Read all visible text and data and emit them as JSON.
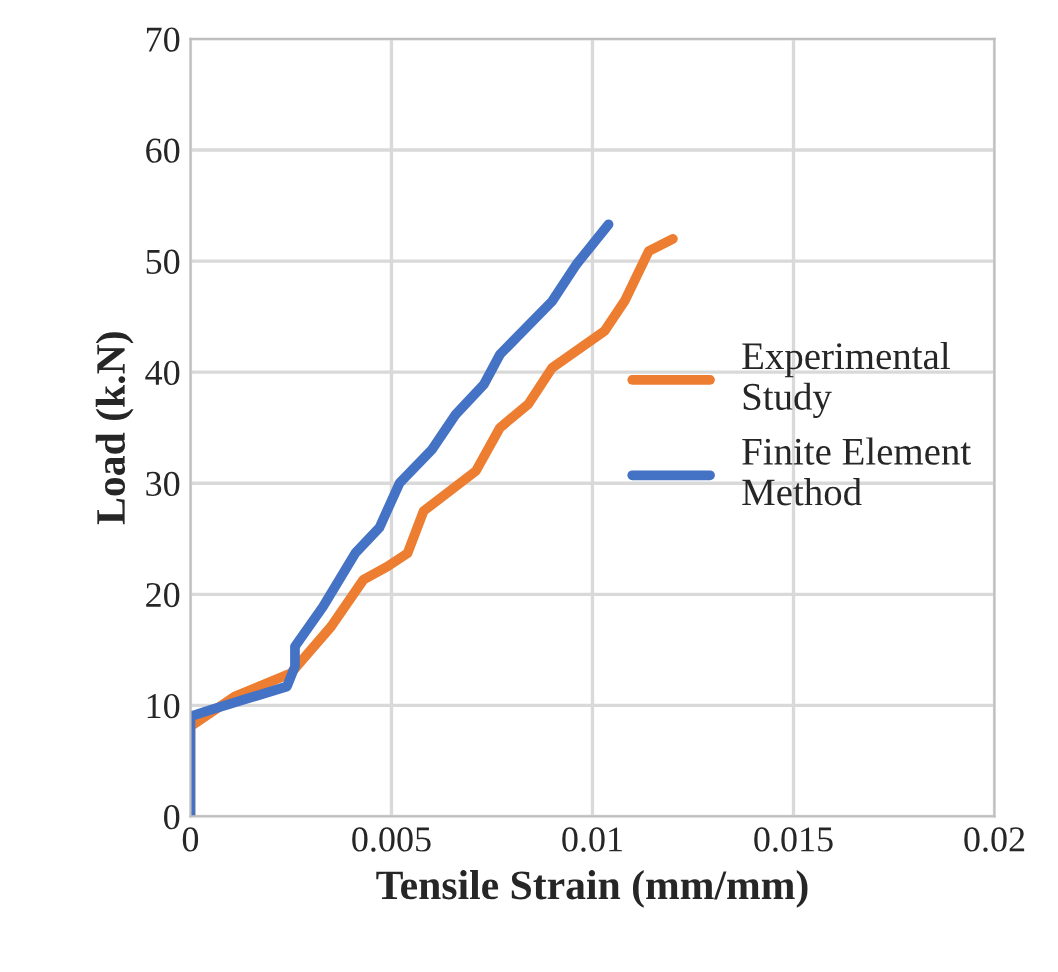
{
  "chart_data": {
    "type": "line",
    "xlabel": "Tensile Strain (mm/mm)",
    "ylabel": "Load (k.N)",
    "xlim": [
      0,
      0.02
    ],
    "xticks": [
      0,
      0.005,
      0.01,
      0.015,
      0.02
    ],
    "ylim": [
      0,
      70
    ],
    "yticks": [
      0,
      10,
      20,
      30,
      40,
      50,
      60,
      70
    ],
    "grid": true,
    "legend": "right",
    "marker": "none",
    "line_style": "solid",
    "series": [
      {
        "name": "Experimental\nStudy",
        "color": "#ed7d31",
        "x": [
          0,
          0,
          0.0011,
          0.0025,
          0.0035,
          0.0043,
          0.0049,
          0.0054,
          0.0058,
          0.0071,
          0.0077,
          0.0084,
          0.009,
          0.0103,
          0.0108,
          0.0114,
          0.012
        ],
        "values": [
          0,
          8.1,
          10.8,
          12.9,
          17.1,
          21.3,
          22.5,
          23.7,
          27.5,
          31.1,
          35,
          37.1,
          40.4,
          43.7,
          46.4,
          50.9,
          52
        ]
      },
      {
        "name": "Finite Element\nMethod",
        "color": "#4472c4",
        "x": [
          0,
          0,
          0.0005,
          0.0024,
          0.0026,
          0.0026,
          0.0033,
          0.0041,
          0.0047,
          0.0052,
          0.006,
          0.0066,
          0.0073,
          0.0077,
          0.009,
          0.0096,
          0.0104
        ],
        "values": [
          0,
          9,
          9.6,
          11.7,
          13.5,
          15.3,
          18.9,
          23.7,
          26,
          30,
          33,
          36.2,
          38.9,
          41.6,
          46.4,
          49.7,
          53.3
        ]
      }
    ]
  }
}
